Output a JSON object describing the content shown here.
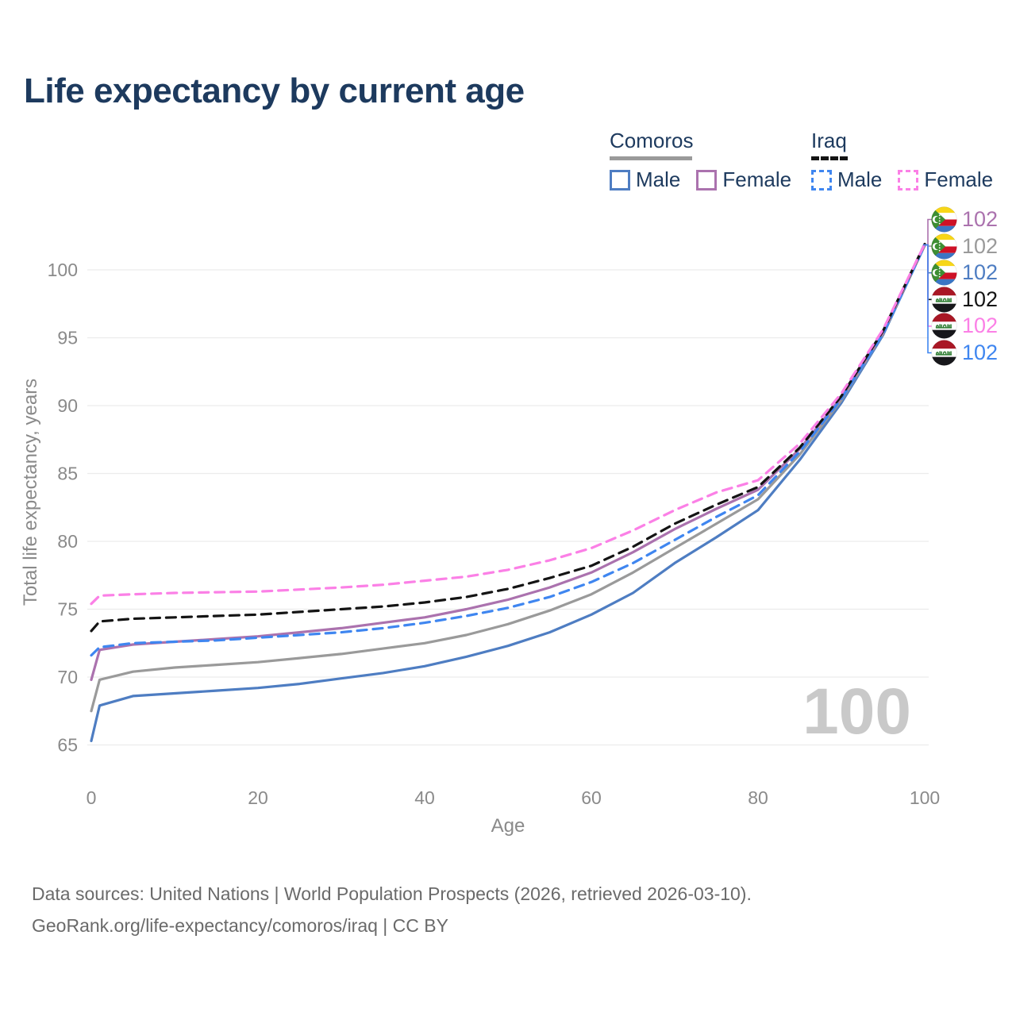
{
  "title": "Life expectancy by current age",
  "legend": {
    "comoros": {
      "label": "Comoros",
      "male": "Male",
      "female": "Female"
    },
    "iraq": {
      "label": "Iraq",
      "male": "Male",
      "female": "Female"
    }
  },
  "colors": {
    "comoros_male": "#4e7dc2",
    "comoros_female": "#ab72ae",
    "comoros_both": "#9a9a9a",
    "iraq_male": "#3f86f0",
    "iraq_female": "#fb80e6",
    "iraq_both": "#141414",
    "title_text": "#1d3a5e",
    "axis_text": "#8a8a8a",
    "grid": "#ececec",
    "watermark": "#c9c9c9"
  },
  "chart_data": {
    "type": "line",
    "title": "Life expectancy by current age",
    "xlabel": "Age",
    "ylabel": "Total life expectancy, years",
    "xlim": [
      0,
      100
    ],
    "ylim": [
      63,
      103
    ],
    "xticks": [
      0,
      20,
      40,
      60,
      80,
      100
    ],
    "yticks": [
      65,
      70,
      75,
      80,
      85,
      90,
      95,
      100
    ],
    "grid": "horizontal",
    "legend_position": "top-right",
    "x": [
      0,
      1,
      5,
      10,
      15,
      20,
      25,
      30,
      35,
      40,
      45,
      50,
      55,
      60,
      65,
      70,
      75,
      80,
      85,
      90,
      95,
      100
    ],
    "series": [
      {
        "id": "comoros-male",
        "name": "Comoros Male",
        "country": "Comoros",
        "sex": "Male",
        "dash": "solid",
        "color": "#4e7dc2",
        "values": [
          65.3,
          67.9,
          68.6,
          68.8,
          69.0,
          69.2,
          69.5,
          69.9,
          70.3,
          70.8,
          71.5,
          72.3,
          73.3,
          74.6,
          76.2,
          78.4,
          80.3,
          82.3,
          86.0,
          90.2,
          95.2,
          101.8
        ]
      },
      {
        "id": "comoros-both",
        "name": "Comoros Both sexes",
        "country": "Comoros",
        "sex": "Both",
        "dash": "solid",
        "color": "#9a9a9a",
        "values": [
          67.5,
          69.8,
          70.4,
          70.7,
          70.9,
          71.1,
          71.4,
          71.7,
          72.1,
          72.5,
          73.1,
          73.9,
          74.9,
          76.1,
          77.7,
          79.5,
          81.3,
          83.1,
          86.4,
          90.4,
          95.3,
          101.8
        ]
      },
      {
        "id": "comoros-female",
        "name": "Comoros Female",
        "country": "Comoros",
        "sex": "Female",
        "dash": "solid",
        "color": "#ab72ae",
        "values": [
          69.8,
          72.0,
          72.4,
          72.6,
          72.8,
          73.0,
          73.3,
          73.6,
          74.0,
          74.4,
          75.0,
          75.7,
          76.6,
          77.7,
          79.2,
          80.9,
          82.4,
          83.8,
          86.8,
          90.6,
          95.4,
          101.9
        ]
      },
      {
        "id": "iraq-male",
        "name": "Iraq Male",
        "country": "Iraq",
        "sex": "Male",
        "dash": "dashed",
        "color": "#3f86f0",
        "values": [
          71.6,
          72.2,
          72.5,
          72.6,
          72.7,
          72.9,
          73.1,
          73.3,
          73.6,
          74.0,
          74.5,
          75.1,
          75.9,
          77.0,
          78.4,
          80.1,
          81.8,
          83.4,
          86.6,
          90.5,
          95.3,
          101.8
        ]
      },
      {
        "id": "iraq-both",
        "name": "Iraq Both sexes",
        "country": "Iraq",
        "sex": "Both",
        "dash": "dashed",
        "color": "#141414",
        "values": [
          73.4,
          74.1,
          74.3,
          74.4,
          74.5,
          74.6,
          74.8,
          75.0,
          75.2,
          75.5,
          75.9,
          76.5,
          77.3,
          78.2,
          79.6,
          81.3,
          82.7,
          84.0,
          86.9,
          90.7,
          95.5,
          101.9
        ]
      },
      {
        "id": "iraq-female",
        "name": "Iraq Female",
        "country": "Iraq",
        "sex": "Female",
        "dash": "dashed",
        "color": "#fb80e6",
        "values": [
          75.4,
          76.0,
          76.1,
          76.2,
          76.25,
          76.3,
          76.45,
          76.6,
          76.8,
          77.1,
          77.4,
          77.9,
          78.6,
          79.5,
          80.8,
          82.3,
          83.6,
          84.5,
          87.2,
          90.9,
          95.6,
          101.9
        ]
      }
    ]
  },
  "right_labels": [
    {
      "flag": "comoros",
      "value": "102",
      "color": "#ab72ae"
    },
    {
      "flag": "comoros",
      "value": "102",
      "color": "#9a9a9a"
    },
    {
      "flag": "comoros",
      "value": "102",
      "color": "#4e7dc2"
    },
    {
      "flag": "iraq",
      "value": "102",
      "color": "#141414"
    },
    {
      "flag": "iraq",
      "value": "102",
      "color": "#fb80e6"
    },
    {
      "flag": "iraq",
      "value": "102",
      "color": "#3f86f0"
    }
  ],
  "watermark": {
    "value": "100"
  },
  "footer": {
    "line1": "Data sources: United Nations | World Population Prospects (2026, retrieved 2026-03-10).",
    "line2": "GeoRank.org/life-expectancy/comoros/iraq | CC BY"
  }
}
